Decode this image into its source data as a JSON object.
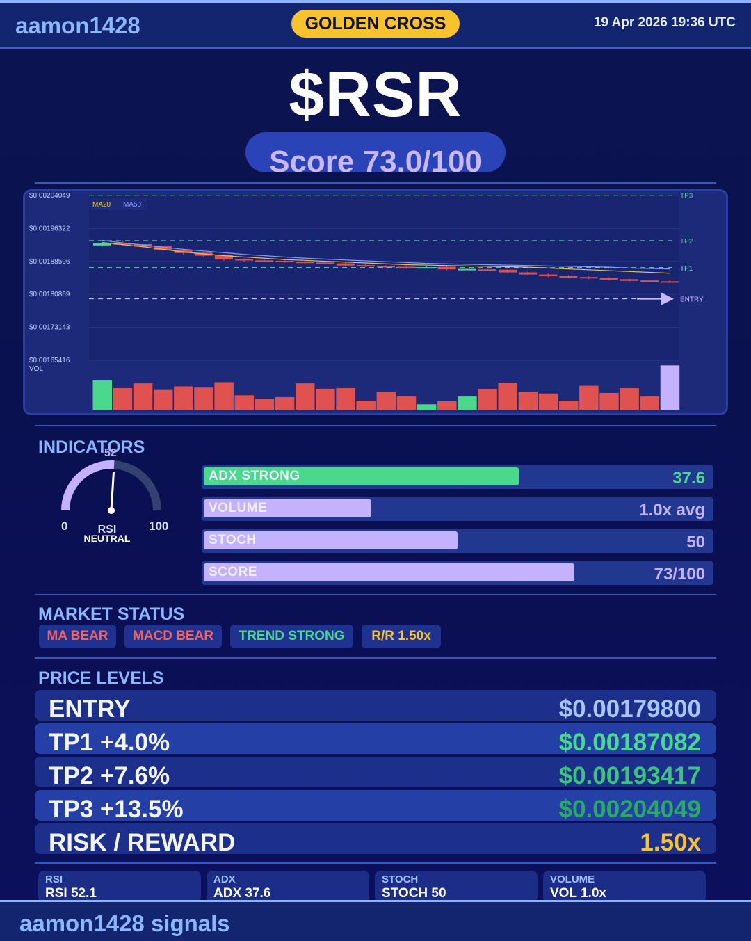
{
  "header": {
    "brand": "aamon1428",
    "badge": "GOLDEN CROSS",
    "datetime": "19 Apr 2026  19:36 UTC"
  },
  "ticker": "$RSR",
  "score_label": "Score 73.0/100",
  "chart_data": {
    "type": "candlestick",
    "y_ticks": [
      "$0.00204049",
      "$0.00196322",
      "$0.00188596",
      "$0.00180869",
      "$0.00173143",
      "$0.00165416"
    ],
    "ylim": [
      0.001654,
      0.00204
    ],
    "legend": [
      "MA20",
      "MA50"
    ],
    "vol_label": "VOL",
    "levels": [
      {
        "name": "TP3",
        "value": 0.00204049,
        "color": "#4bd58c"
      },
      {
        "name": "TP2",
        "value": 0.00193417,
        "color": "#4bd58c"
      },
      {
        "name": "TP1",
        "value": 0.00187082,
        "color": "#7fe0d0"
      },
      {
        "name": "ENTRY",
        "value": 0.001798,
        "color": "#c9b8ff"
      }
    ],
    "candles": [
      {
        "o": 0.001923,
        "c": 0.001928,
        "h": 0.001931,
        "l": 0.00192
      },
      {
        "o": 0.001928,
        "c": 0.001925,
        "h": 0.001935,
        "l": 0.001922
      },
      {
        "o": 0.001926,
        "c": 0.00192,
        "h": 0.001929,
        "l": 0.001918
      },
      {
        "o": 0.001921,
        "c": 0.001912,
        "h": 0.001923,
        "l": 0.001909
      },
      {
        "o": 0.001912,
        "c": 0.001905,
        "h": 0.001915,
        "l": 0.001902
      },
      {
        "o": 0.001906,
        "c": 0.001899,
        "h": 0.001908,
        "l": 0.001896
      },
      {
        "o": 0.0019,
        "c": 0.00189,
        "h": 0.001902,
        "l": 0.001887
      },
      {
        "o": 0.001891,
        "c": 0.001888,
        "h": 0.001893,
        "l": 0.001885
      },
      {
        "o": 0.001888,
        "c": 0.001886,
        "h": 0.00189,
        "l": 0.001884
      },
      {
        "o": 0.001887,
        "c": 0.001884,
        "h": 0.001889,
        "l": 0.001882
      },
      {
        "o": 0.001885,
        "c": 0.001882,
        "h": 0.001888,
        "l": 0.00188
      },
      {
        "o": 0.001883,
        "c": 0.00188,
        "h": 0.001885,
        "l": 0.001878
      },
      {
        "o": 0.001881,
        "c": 0.001876,
        "h": 0.001883,
        "l": 0.001874
      },
      {
        "o": 0.001877,
        "c": 0.001874,
        "h": 0.001879,
        "l": 0.001872
      },
      {
        "o": 0.001875,
        "c": 0.001872,
        "h": 0.001877,
        "l": 0.00187
      },
      {
        "o": 0.001873,
        "c": 0.001871,
        "h": 0.001876,
        "l": 0.001868
      },
      {
        "o": 0.001871,
        "c": 0.001872,
        "h": 0.001874,
        "l": 0.001869
      },
      {
        "o": 0.001873,
        "c": 0.001867,
        "h": 0.001876,
        "l": 0.001865
      },
      {
        "o": 0.001867,
        "c": 0.001868,
        "h": 0.00187,
        "l": 0.001865
      },
      {
        "o": 0.001867,
        "c": 0.001866,
        "h": 0.001869,
        "l": 0.001864
      },
      {
        "o": 0.001866,
        "c": 0.00186,
        "h": 0.001868,
        "l": 0.001857
      },
      {
        "o": 0.00186,
        "c": 0.001855,
        "h": 0.001862,
        "l": 0.001853
      },
      {
        "o": 0.001855,
        "c": 0.001851,
        "h": 0.001857,
        "l": 0.001849
      },
      {
        "o": 0.001851,
        "c": 0.001848,
        "h": 0.001853,
        "l": 0.001846
      },
      {
        "o": 0.001849,
        "c": 0.001846,
        "h": 0.001851,
        "l": 0.001844
      },
      {
        "o": 0.001847,
        "c": 0.001843,
        "h": 0.001849,
        "l": 0.001841
      },
      {
        "o": 0.001844,
        "c": 0.00184,
        "h": 0.001846,
        "l": 0.001837
      },
      {
        "o": 0.001841,
        "c": 0.001839,
        "h": 0.001843,
        "l": 0.001836
      },
      {
        "o": 0.001839,
        "c": 0.001838,
        "h": 0.001842,
        "l": 0.001835
      }
    ],
    "ma20": [
      0.00193,
      0.001925,
      0.00192,
      0.001914,
      0.001908,
      0.001903,
      0.001899,
      0.001896,
      0.001893,
      0.00189,
      0.001888,
      0.001886,
      0.001884,
      0.001882,
      0.00188,
      0.001878,
      0.001877,
      0.001876,
      0.001875,
      0.001874,
      0.001873,
      0.001872,
      0.00187,
      0.001868,
      0.001866,
      0.001864,
      0.001862,
      0.00186,
      0.001858
    ],
    "ma50": [
      0.001935,
      0.001929,
      0.001924,
      0.001919,
      0.001914,
      0.00191,
      0.001906,
      0.001902,
      0.001899,
      0.001896,
      0.001893,
      0.001891,
      0.001889,
      0.001887,
      0.001885,
      0.001883,
      0.001881,
      0.00188,
      0.001879,
      0.001878,
      0.001877,
      0.001876,
      0.001875,
      0.001874,
      0.001873,
      0.001872,
      0.00187,
      0.001869,
      0.001868
    ],
    "volume": [
      0.98,
      0.72,
      0.88,
      0.66,
      0.78,
      0.74,
      0.92,
      0.48,
      0.36,
      0.42,
      0.88,
      0.7,
      0.72,
      0.3,
      0.6,
      0.44,
      0.18,
      0.28,
      0.44,
      0.68,
      0.9,
      0.6,
      0.54,
      0.3,
      0.8,
      0.56,
      0.72,
      0.44,
      1.48
    ]
  },
  "indicators": {
    "title": "INDICATORS",
    "rsi": {
      "value": "52",
      "min": "0",
      "max": "100",
      "label": "RSI",
      "status": "NEUTRAL",
      "fraction": 0.52
    },
    "bars": [
      {
        "label": "ADX  STRONG",
        "value": "37.6",
        "fraction": 0.62,
        "color": "#4ad98c",
        "value_color": "#4ad98c"
      },
      {
        "label": "VOLUME",
        "value": "1.0x avg",
        "fraction": 0.33,
        "color": "#c4b2ff",
        "value_color": "#c4b2ff"
      },
      {
        "label": "STOCH",
        "value": "50",
        "fraction": 0.5,
        "color": "#c4b2ff",
        "value_color": "#c4b2ff"
      },
      {
        "label": "SCORE",
        "value": "73/100",
        "fraction": 0.73,
        "color": "#c4b2ff",
        "value_color": "#c4b2ff"
      }
    ]
  },
  "market_status": {
    "title": "MARKET STATUS",
    "chips": [
      {
        "label": "MA BEAR",
        "color": "#f06464"
      },
      {
        "label": "MACD BEAR",
        "color": "#f06464"
      },
      {
        "label": "TREND STRONG",
        "color": "#4ad98c"
      },
      {
        "label": "R/R  1.50x",
        "color": "#f7c22e"
      }
    ]
  },
  "price_levels": {
    "title": "PRICE LEVELS",
    "rows": [
      {
        "label": "ENTRY",
        "value": "$0.00179800",
        "color": "#a9c6ff",
        "bg": "#1c2f8a"
      },
      {
        "label": "TP1  +4.0%",
        "value": "$0.00187082",
        "color": "#4ad98c",
        "bg": "#2440a6"
      },
      {
        "label": "TP2  +7.6%",
        "value": "$0.00193417",
        "color": "#3dc47c",
        "bg": "#1c2f8a"
      },
      {
        "label": "TP3  +13.5%",
        "value": "$0.00204049",
        "color": "#2aa864",
        "bg": "#2440a6"
      },
      {
        "label": "RISK / REWARD",
        "value": "1.50x",
        "color": "#f7c22e",
        "bg": "#1c2f8a"
      }
    ]
  },
  "mini_stats": [
    {
      "title": "RSI",
      "value": "RSI 52.1"
    },
    {
      "title": "ADX",
      "value": "ADX 37.6"
    },
    {
      "title": "STOCH",
      "value": "STOCH 50"
    },
    {
      "title": "VOLUME",
      "value": "VOL 1.0x"
    }
  ],
  "footer": "aamon1428 signals"
}
